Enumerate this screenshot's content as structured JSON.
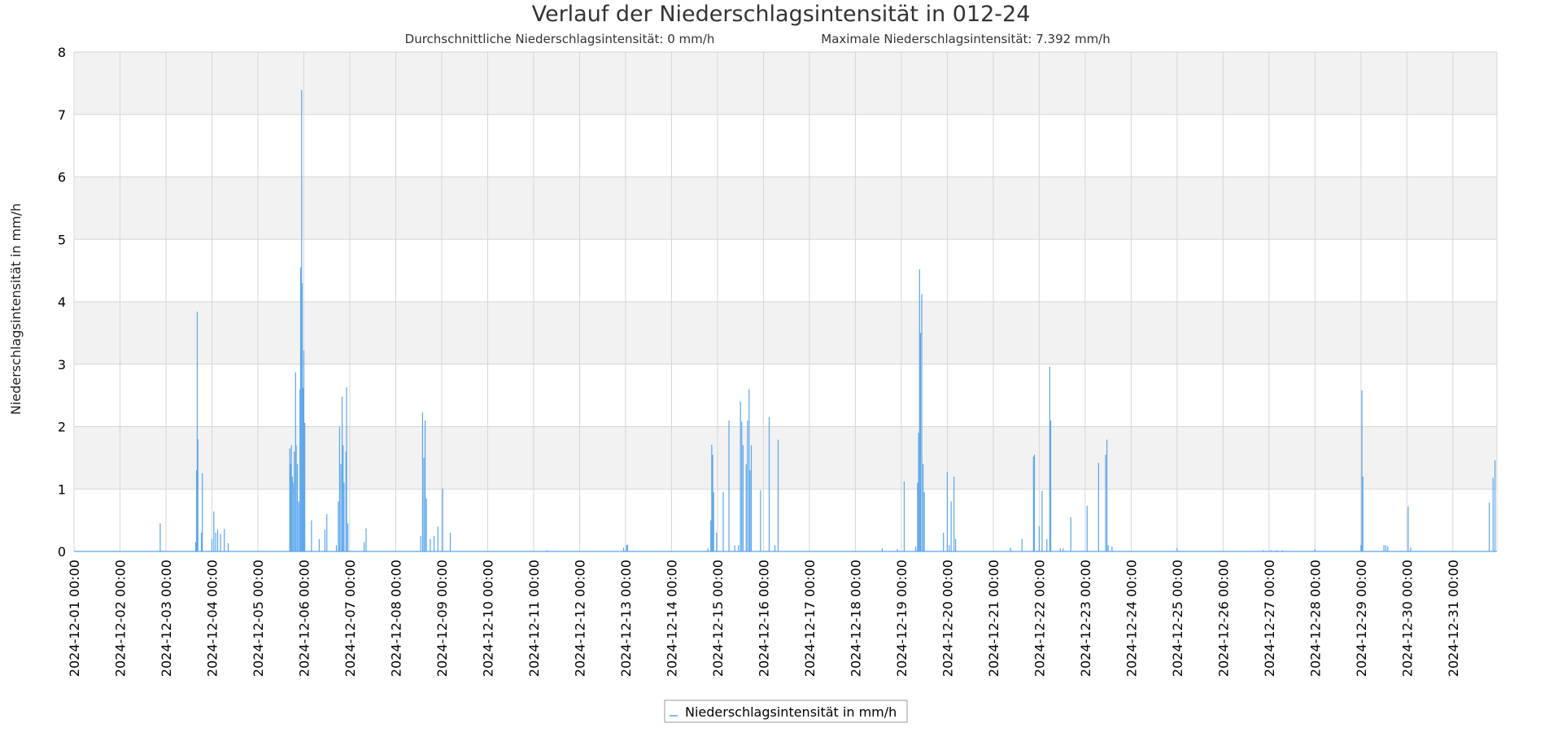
{
  "chart_data": {
    "type": "line",
    "title": "Verlauf der Niederschlagsintensität in 012-24",
    "subtitle_avg": "Durchschnittliche Niederschlagsintensität: 0 mm/h",
    "subtitle_max": "Maximale Niederschlagsintensität: 7.392 mm/h",
    "ylabel": "Niederschlagsintensität in mm/h",
    "xlabel": "",
    "ylim": [
      0,
      8
    ],
    "yticks": [
      "0",
      "1",
      "2",
      "3",
      "4",
      "5",
      "6",
      "7",
      "8"
    ],
    "xlim": [
      "2024-12-01 00:00",
      "2024-12-31 23:00"
    ],
    "xticks": [
      "2024-12-01 00:00",
      "2024-12-02 00:00",
      "2024-12-03 00:00",
      "2024-12-04 00:00",
      "2024-12-05 00:00",
      "2024-12-06 00:00",
      "2024-12-07 00:00",
      "2024-12-08 00:00",
      "2024-12-09 00:00",
      "2024-12-10 00:00",
      "2024-12-11 00:00",
      "2024-12-12 00:00",
      "2024-12-13 00:00",
      "2024-12-14 00:00",
      "2024-12-15 00:00",
      "2024-12-16 00:00",
      "2024-12-17 00:00",
      "2024-12-18 00:00",
      "2024-12-19 00:00",
      "2024-12-20 00:00",
      "2024-12-21 00:00",
      "2024-12-22 00:00",
      "2024-12-23 00:00",
      "2024-12-24 00:00",
      "2024-12-25 00:00",
      "2024-12-26 00:00",
      "2024-12-27 00:00",
      "2024-12-28 00:00",
      "2024-12-29 00:00",
      "2024-12-30 00:00",
      "2024-12-31 00:00"
    ],
    "grid": true,
    "legend_position": "bottom-center",
    "colors": {
      "series": "#5aa5ea",
      "band": "#f2f2f2",
      "grid": "#d6d6d6"
    },
    "series": [
      {
        "name": "Niederschlagsintensität in mm/h",
        "points": [
          [
            "2024-12-02 21:00",
            0.45
          ],
          [
            "2024-12-03 15:30",
            0.15
          ],
          [
            "2024-12-03 16:00",
            1.3
          ],
          [
            "2024-12-03 16:20",
            3.84
          ],
          [
            "2024-12-03 16:40",
            1.8
          ],
          [
            "2024-12-03 18:30",
            0.3
          ],
          [
            "2024-12-03 19:00",
            1.25
          ],
          [
            "2024-12-04 00:00",
            0.2
          ],
          [
            "2024-12-04 01:00",
            0.64
          ],
          [
            "2024-12-04 02:00",
            0.3
          ],
          [
            "2024-12-04 03:00",
            0.35
          ],
          [
            "2024-12-04 04:30",
            0.28
          ],
          [
            "2024-12-04 06:30",
            0.36
          ],
          [
            "2024-12-04 08:30",
            0.13
          ],
          [
            "2024-12-05 16:40",
            1.65
          ],
          [
            "2024-12-05 17:00",
            1.4
          ],
          [
            "2024-12-05 17:30",
            1.7
          ],
          [
            "2024-12-05 18:00",
            1.2
          ],
          [
            "2024-12-05 18:40",
            1.1
          ],
          [
            "2024-12-05 19:00",
            1.6
          ],
          [
            "2024-12-05 19:40",
            2.87
          ],
          [
            "2024-12-05 20:00",
            1.7
          ],
          [
            "2024-12-05 20:40",
            1.4
          ],
          [
            "2024-12-05 21:20",
            0.8
          ],
          [
            "2024-12-05 22:00",
            2.6
          ],
          [
            "2024-12-05 22:20",
            4.55
          ],
          [
            "2024-12-05 22:50",
            7.39
          ],
          [
            "2024-12-05 23:10",
            4.3
          ],
          [
            "2024-12-05 23:40",
            2.62
          ],
          [
            "2024-12-06 00:00",
            3.22
          ],
          [
            "2024-12-06 00:30",
            2.06
          ],
          [
            "2024-12-06 04:00",
            0.5
          ],
          [
            "2024-12-06 08:00",
            0.2
          ],
          [
            "2024-12-06 11:00",
            0.35
          ],
          [
            "2024-12-06 12:00",
            0.6
          ],
          [
            "2024-12-06 17:00",
            0.1
          ],
          [
            "2024-12-06 18:00",
            0.8
          ],
          [
            "2024-12-06 18:40",
            2.0
          ],
          [
            "2024-12-06 19:20",
            1.4
          ],
          [
            "2024-12-06 20:00",
            2.48
          ],
          [
            "2024-12-06 20:30",
            1.7
          ],
          [
            "2024-12-06 21:00",
            1.1
          ],
          [
            "2024-12-06 22:00",
            1.6
          ],
          [
            "2024-12-06 22:20",
            2.63
          ],
          [
            "2024-12-06 23:00",
            0.45
          ],
          [
            "2024-12-07 07:30",
            0.15
          ],
          [
            "2024-12-07 08:30",
            0.37
          ],
          [
            "2024-12-08 13:00",
            0.25
          ],
          [
            "2024-12-08 14:00",
            2.23
          ],
          [
            "2024-12-08 14:40",
            1.5
          ],
          [
            "2024-12-08 15:20",
            2.1
          ],
          [
            "2024-12-08 16:00",
            0.85
          ],
          [
            "2024-12-08 18:00",
            0.2
          ],
          [
            "2024-12-08 20:00",
            0.25
          ],
          [
            "2024-12-08 22:00",
            0.4
          ],
          [
            "2024-12-09 00:30",
            1.01
          ],
          [
            "2024-12-09 04:30",
            0.3
          ],
          [
            "2024-12-11 07:00",
            0.02
          ],
          [
            "2024-12-12 23:00",
            0.06
          ],
          [
            "2024-12-13 00:30",
            0.1
          ],
          [
            "2024-12-13 01:00",
            0.11
          ],
          [
            "2024-12-14 19:00",
            0.05
          ],
          [
            "2024-12-14 20:30",
            0.5
          ],
          [
            "2024-12-14 21:00",
            1.71
          ],
          [
            "2024-12-14 21:30",
            1.55
          ],
          [
            "2024-12-14 22:00",
            0.95
          ],
          [
            "2024-12-14 23:30",
            0.3
          ],
          [
            "2024-12-15 03:00",
            0.95
          ],
          [
            "2024-12-15 06:00",
            2.1
          ],
          [
            "2024-12-15 09:00",
            0.1
          ],
          [
            "2024-12-15 11:00",
            0.1
          ],
          [
            "2024-12-15 12:00",
            2.4
          ],
          [
            "2024-12-15 12:40",
            2.08
          ],
          [
            "2024-12-15 13:20",
            1.7
          ],
          [
            "2024-12-15 15:00",
            1.4
          ],
          [
            "2024-12-15 15:40",
            2.1
          ],
          [
            "2024-12-15 16:30",
            2.6
          ],
          [
            "2024-12-15 17:00",
            1.3
          ],
          [
            "2024-12-15 17:40",
            1.7
          ],
          [
            "2024-12-15 22:30",
            0.98
          ],
          [
            "2024-12-16 03:00",
            2.15
          ],
          [
            "2024-12-16 06:00",
            0.1
          ],
          [
            "2024-12-16 07:40",
            1.79
          ],
          [
            "2024-12-18 14:00",
            0.05
          ],
          [
            "2024-12-18 22:00",
            0.04
          ],
          [
            "2024-12-19 01:30",
            1.12
          ],
          [
            "2024-12-19 07:30",
            0.08
          ],
          [
            "2024-12-19 08:30",
            1.1
          ],
          [
            "2024-12-19 09:00",
            1.9
          ],
          [
            "2024-12-19 09:30",
            4.52
          ],
          [
            "2024-12-19 10:00",
            3.5
          ],
          [
            "2024-12-19 10:40",
            4.12
          ],
          [
            "2024-12-19 11:20",
            1.4
          ],
          [
            "2024-12-19 12:00",
            0.95
          ],
          [
            "2024-12-19 22:00",
            0.3
          ],
          [
            "2024-12-20 00:00",
            1.27
          ],
          [
            "2024-12-20 01:00",
            0.1
          ],
          [
            "2024-12-20 02:00",
            0.8
          ],
          [
            "2024-12-20 03:30",
            1.2
          ],
          [
            "2024-12-20 04:20",
            0.2
          ],
          [
            "2024-12-21 09:00",
            0.06
          ],
          [
            "2024-12-21 15:00",
            0.2
          ],
          [
            "2024-12-21 21:00",
            1.52
          ],
          [
            "2024-12-21 21:30",
            1.55
          ],
          [
            "2024-12-22 00:00",
            0.4
          ],
          [
            "2024-12-22 01:30",
            0.97
          ],
          [
            "2024-12-22 04:00",
            0.2
          ],
          [
            "2024-12-22 05:30",
            2.96
          ],
          [
            "2024-12-22 06:00",
            2.1
          ],
          [
            "2024-12-22 11:00",
            0.05
          ],
          [
            "2024-12-22 12:30",
            0.05
          ],
          [
            "2024-12-22 16:30",
            0.55
          ],
          [
            "2024-12-23 01:00",
            0.73
          ],
          [
            "2024-12-23 07:00",
            1.42
          ],
          [
            "2024-12-23 10:40",
            1.55
          ],
          [
            "2024-12-23 11:20",
            1.79
          ],
          [
            "2024-12-23 12:00",
            0.1
          ],
          [
            "2024-12-23 14:00",
            0.08
          ],
          [
            "2024-12-25 00:00",
            0.06
          ],
          [
            "2024-12-26 21:00",
            0.02
          ],
          [
            "2024-12-27 01:00",
            0.02
          ],
          [
            "2024-12-27 04:00",
            0.02
          ],
          [
            "2024-12-27 07:00",
            0.02
          ],
          [
            "2024-12-28 00:00",
            0.04
          ],
          [
            "2024-12-29 00:00",
            0.1
          ],
          [
            "2024-12-29 00:30",
            2.58
          ],
          [
            "2024-12-29 01:00",
            1.2
          ],
          [
            "2024-12-29 12:00",
            0.1
          ],
          [
            "2024-12-29 13:00",
            0.1
          ],
          [
            "2024-12-29 14:00",
            0.08
          ],
          [
            "2024-12-30 00:40",
            0.72
          ],
          [
            "2024-12-30 02:00",
            0.06
          ],
          [
            "2024-12-31 19:00",
            0.78
          ],
          [
            "2024-12-31 21:00",
            1.18
          ],
          [
            "2024-12-31 22:00",
            1.46
          ]
        ]
      }
    ]
  }
}
